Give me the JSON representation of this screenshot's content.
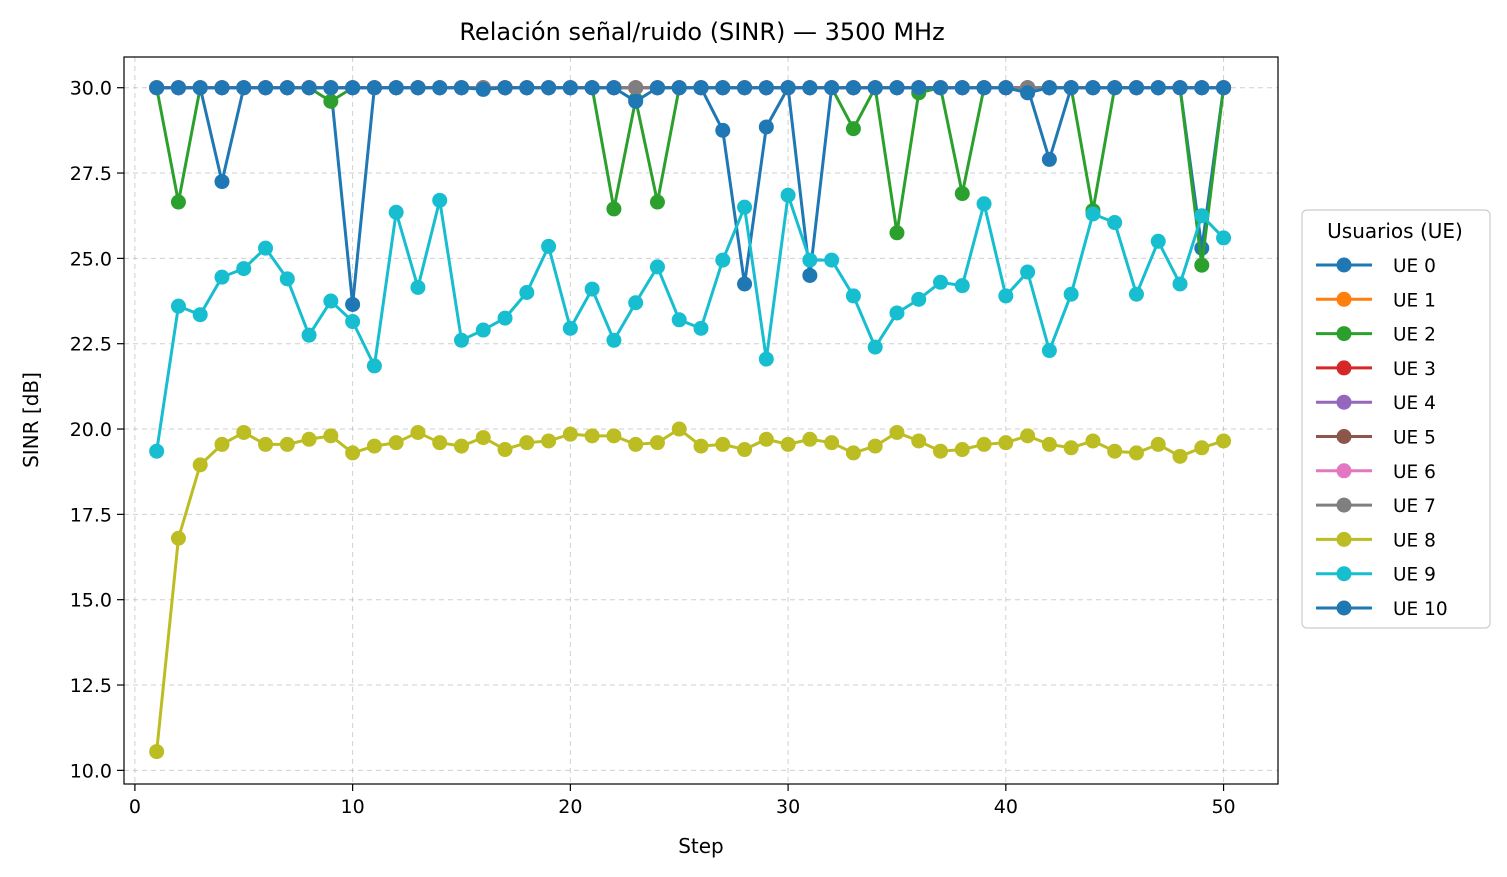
{
  "chart_data": {
    "type": "line",
    "title": "Relación señal/ruido (SINR) — 3500 MHz",
    "xlabel": "Step",
    "ylabel": "SINR [dB]",
    "xlim": [
      -0.5,
      52.5
    ],
    "ylim": [
      9.6,
      30.9
    ],
    "xticks": [
      0,
      10,
      20,
      30,
      40,
      50
    ],
    "yticks": [
      10.0,
      12.5,
      15.0,
      17.5,
      20.0,
      22.5,
      25.0,
      27.5,
      30.0
    ],
    "ytick_labels": [
      "10.0",
      "12.5",
      "15.0",
      "17.5",
      "20.0",
      "22.5",
      "25.0",
      "27.5",
      "30.0"
    ],
    "grid": true,
    "legend": {
      "title": "Usuarios (UE)",
      "placement": "right-outside"
    },
    "x": [
      1,
      2,
      3,
      4,
      5,
      6,
      7,
      8,
      9,
      10,
      11,
      12,
      13,
      14,
      15,
      16,
      17,
      18,
      19,
      20,
      21,
      22,
      23,
      24,
      25,
      26,
      27,
      28,
      29,
      30,
      31,
      32,
      33,
      34,
      35,
      36,
      37,
      38,
      39,
      40,
      41,
      42,
      43,
      44,
      45,
      46,
      47,
      48,
      49,
      50
    ],
    "series": [
      {
        "name": "UE 0",
        "color": "#1f77b4",
        "values": [
          30,
          30,
          30,
          27.25,
          30,
          30,
          30,
          30,
          30,
          23.65,
          30,
          30,
          30,
          30,
          30,
          30,
          30,
          30,
          30,
          30,
          30,
          30,
          30,
          30,
          30,
          30,
          28.75,
          24.25,
          28.85,
          30,
          24.5,
          30,
          30,
          30,
          30,
          30,
          30,
          30,
          30,
          30,
          30,
          27.9,
          30,
          30,
          30,
          30,
          30,
          30,
          25.3,
          30
        ]
      },
      {
        "name": "UE 1",
        "color": "#ff7f0e",
        "values": [
          30,
          30,
          30,
          30,
          30,
          30,
          30,
          30,
          30,
          30,
          30,
          30,
          30,
          30,
          30,
          30,
          30,
          30,
          30,
          30,
          30,
          30,
          30,
          30,
          30,
          30,
          30,
          30,
          30,
          30,
          30,
          30,
          30,
          30,
          30,
          30,
          30,
          30,
          30,
          30,
          30,
          30,
          30,
          30,
          30,
          30,
          30,
          30,
          30,
          30
        ]
      },
      {
        "name": "UE 2",
        "color": "#2ca02c",
        "values": [
          30,
          26.65,
          30,
          30,
          30,
          30,
          30,
          30,
          29.6,
          30,
          30,
          30,
          30,
          30,
          30,
          30,
          30,
          30,
          30,
          30,
          30,
          26.45,
          29.65,
          26.65,
          30,
          30,
          30,
          30,
          30,
          30,
          30,
          30,
          28.8,
          30,
          25.75,
          29.85,
          30,
          26.9,
          30,
          30,
          30,
          30,
          30,
          26.4,
          30,
          30,
          30,
          30,
          24.8,
          30
        ]
      },
      {
        "name": "UE 3",
        "color": "#d62728",
        "values": [
          30,
          30,
          30,
          30,
          30,
          30,
          30,
          30,
          30,
          30,
          30,
          30,
          30,
          30,
          30,
          30,
          30,
          30,
          30,
          30,
          30,
          30,
          30,
          30,
          30,
          30,
          30,
          30,
          30,
          30,
          30,
          30,
          30,
          30,
          30,
          30,
          30,
          30,
          30,
          30,
          30,
          30,
          30,
          30,
          30,
          30,
          30,
          30,
          30,
          30
        ]
      },
      {
        "name": "UE 4",
        "color": "#9467bd",
        "values": [
          30,
          30,
          30,
          30,
          30,
          30,
          30,
          30,
          30,
          30,
          30,
          30,
          30,
          30,
          30,
          30,
          30,
          30,
          30,
          30,
          30,
          30,
          30,
          30,
          30,
          30,
          30,
          30,
          30,
          30,
          30,
          30,
          30,
          30,
          30,
          30,
          30,
          30,
          30,
          30,
          30,
          30,
          30,
          30,
          30,
          30,
          30,
          30,
          30,
          30
        ]
      },
      {
        "name": "UE 5",
        "color": "#8c564b",
        "values": [
          30,
          30,
          30,
          30,
          30,
          30,
          30,
          30,
          30,
          30,
          30,
          30,
          30,
          30,
          30,
          30,
          30,
          30,
          30,
          30,
          30,
          30,
          30,
          30,
          30,
          30,
          30,
          30,
          30,
          30,
          30,
          30,
          30,
          30,
          30,
          30,
          30,
          30,
          30,
          30,
          30,
          30,
          30,
          30,
          30,
          30,
          30,
          30,
          30,
          30
        ]
      },
      {
        "name": "UE 6",
        "color": "#e377c2",
        "values": [
          30,
          30,
          30,
          30,
          30,
          30,
          30,
          30,
          30,
          30,
          30,
          30,
          30,
          30,
          30,
          30,
          30,
          30,
          30,
          30,
          30,
          30,
          30,
          30,
          30,
          30,
          30,
          30,
          30,
          30,
          30,
          30,
          30,
          30,
          30,
          30,
          30,
          30,
          30,
          30,
          30,
          30,
          30,
          30,
          30,
          30,
          30,
          30,
          30,
          30
        ]
      },
      {
        "name": "UE 7",
        "color": "#7f7f7f",
        "values": [
          30,
          30,
          30,
          30,
          30,
          30,
          30,
          30,
          30,
          30,
          30,
          30,
          30,
          30,
          30,
          30,
          30,
          30,
          30,
          30,
          30,
          30,
          30,
          30,
          30,
          30,
          30,
          30,
          30,
          30,
          30,
          30,
          30,
          30,
          30,
          30,
          30,
          30,
          30,
          30,
          30,
          30,
          30,
          30,
          30,
          30,
          30,
          30,
          30,
          30
        ]
      },
      {
        "name": "UE 8",
        "color": "#bcbd22",
        "values": [
          10.55,
          16.8,
          18.95,
          19.55,
          19.9,
          19.55,
          19.55,
          19.7,
          19.8,
          19.3,
          19.5,
          19.6,
          19.9,
          19.6,
          19.5,
          19.75,
          19.4,
          19.6,
          19.65,
          19.85,
          19.8,
          19.8,
          19.55,
          19.6,
          20.0,
          19.5,
          19.55,
          19.4,
          19.7,
          19.55,
          19.7,
          19.6,
          19.3,
          19.5,
          19.9,
          19.65,
          19.35,
          19.4,
          19.55,
          19.6,
          19.8,
          19.55,
          19.45,
          19.65,
          19.35,
          19.3,
          19.55,
          19.2,
          19.45,
          19.65
        ]
      },
      {
        "name": "UE 9",
        "color": "#17becf",
        "values": [
          19.35,
          23.6,
          23.35,
          24.45,
          24.7,
          25.3,
          24.4,
          22.75,
          23.75,
          23.15,
          21.85,
          26.35,
          24.15,
          26.7,
          22.6,
          22.9,
          23.25,
          24.0,
          25.35,
          22.95,
          24.1,
          22.6,
          23.7,
          24.75,
          23.2,
          22.95,
          24.95,
          26.5,
          22.05,
          26.85,
          24.95,
          24.95,
          23.9,
          22.4,
          23.4,
          23.8,
          24.3,
          24.2,
          26.6,
          23.9,
          24.6,
          22.3,
          23.95,
          26.3,
          26.05,
          23.95,
          25.5,
          24.25,
          26.25,
          25.6
        ]
      },
      {
        "name": "UE 10",
        "color": "#1f77b4",
        "values": [
          30,
          30,
          30,
          30,
          30,
          30,
          30,
          30,
          30,
          30,
          30,
          30,
          30,
          30,
          30,
          29.95,
          30,
          30,
          30,
          30,
          30,
          30,
          29.6,
          30,
          30,
          30,
          30,
          30,
          30,
          30,
          30,
          30,
          30,
          30,
          30,
          30,
          30,
          30,
          30,
          30,
          29.85,
          30,
          30,
          30,
          30,
          30,
          30,
          30,
          30,
          30
        ]
      }
    ]
  }
}
